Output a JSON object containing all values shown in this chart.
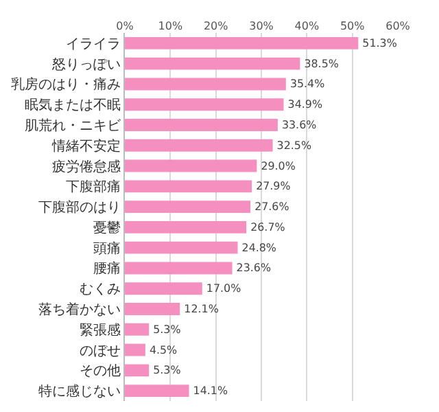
{
  "chart_data": {
    "type": "bar",
    "orientation": "horizontal",
    "categories": [
      "イライラ",
      "怒りっぽい",
      "乳房のはり・痛み",
      "眠気または不眠",
      "肌荒れ・ニキビ",
      "情緒不安定",
      "疲労倦怠感",
      "下腹部痛",
      "下腹部のはり",
      "憂鬱",
      "頭痛",
      "腰痛",
      "むくみ",
      "落ち着かない",
      "緊張感",
      "のぼせ",
      "その他",
      "特に感じない"
    ],
    "values": [
      51.3,
      38.5,
      35.4,
      34.9,
      33.6,
      32.5,
      29.0,
      27.9,
      27.6,
      26.7,
      24.8,
      23.6,
      17.0,
      12.1,
      5.3,
      4.5,
      5.3,
      14.1
    ],
    "value_labels": [
      "51.3%",
      "38.5%",
      "35.4%",
      "34.9%",
      "33.6%",
      "32.5%",
      "29.0%",
      "27.9%",
      "27.6%",
      "26.7%",
      "24.8%",
      "23.6%",
      "17.0%",
      "12.1%",
      "5.3%",
      "4.5%",
      "5.3%",
      "14.1%"
    ],
    "color": "#f48fc0",
    "xlim": [
      0,
      60
    ],
    "xticks": [
      {
        "value": 0,
        "label": "0%"
      },
      {
        "value": 10,
        "label": "10%"
      },
      {
        "value": 20,
        "label": "20%"
      },
      {
        "value": 30,
        "label": "30%"
      },
      {
        "value": 40,
        "label": "40%"
      },
      {
        "value": 50,
        "label": "50%"
      },
      {
        "value": 60,
        "label": "60%"
      }
    ],
    "grid": "x"
  }
}
